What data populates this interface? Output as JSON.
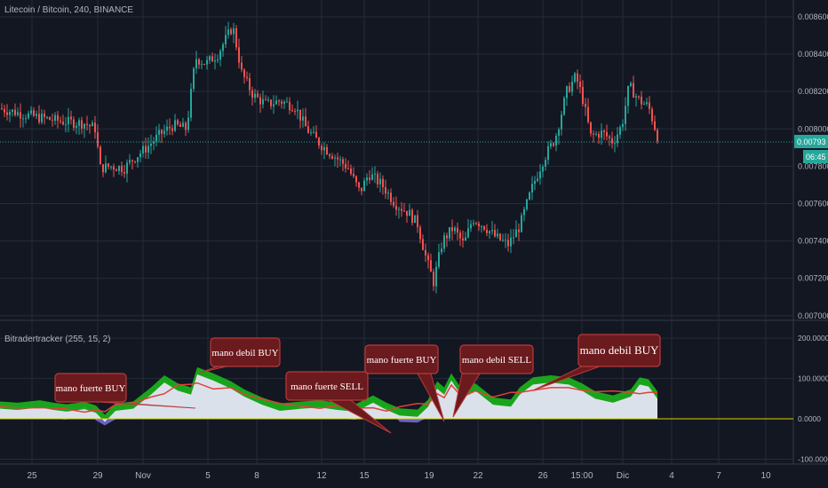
{
  "title": "Litecoin / Bitcoin, 240, BINANCE",
  "indicator_title": "Bitradertracker (255, 15, 2)",
  "price_tag": {
    "value": "0.00793",
    "time": "06:45"
  },
  "colors": {
    "up": "#26a69a",
    "down": "#ef5350",
    "green_fill": "#1bb51b",
    "blue_fill": "#7b6fd6",
    "white_fill": "#e6e4f5",
    "red_line": "#e0403a",
    "zero_line": "#d4d40a",
    "callout_bg": "#6b1a1e",
    "callout_border": "#b83a3a",
    "grid": "#262b3a"
  },
  "callouts": [
    {
      "text": "mano fuerte BUY"
    },
    {
      "text": "mano debil BUY"
    },
    {
      "text": "mano fuerte SELL"
    },
    {
      "text": "mano fuerte BUY"
    },
    {
      "text": "mano debil SELL"
    },
    {
      "text": "mano debil BUY"
    }
  ],
  "chart_data": [
    {
      "type": "candlestick",
      "title": "Litecoin / Bitcoin, 240, BINANCE",
      "x_ticks": [
        "25",
        "29",
        "Nov",
        "5",
        "8",
        "12",
        "15",
        "19",
        "22",
        "26",
        "15:00",
        "Dic",
        "4",
        "7",
        "10"
      ],
      "y_ticks": [
        "0.008600",
        "0.008400",
        "0.008200",
        "0.008000",
        "0.007800",
        "0.007600",
        "0.007400",
        "0.007200",
        "0.007000"
      ],
      "ylim": [
        0.00698,
        0.00869
      ],
      "close_path": [
        [
          0,
          0.00811
        ],
        [
          8,
          0.0081
        ],
        [
          25,
          0.00808
        ],
        [
          45,
          0.00806
        ],
        [
          70,
          0.00804
        ],
        [
          95,
          0.00803
        ],
        [
          108,
          0.008
        ],
        [
          112,
          0.00779
        ],
        [
          125,
          0.0078
        ],
        [
          140,
          0.00779
        ],
        [
          150,
          0.00784
        ],
        [
          165,
          0.0079
        ],
        [
          180,
          0.00797
        ],
        [
          195,
          0.00802
        ],
        [
          210,
          0.008
        ],
        [
          220,
          0.00838
        ],
        [
          232,
          0.00835
        ],
        [
          245,
          0.0084
        ],
        [
          262,
          0.00855
        ],
        [
          272,
          0.0083
        ],
        [
          285,
          0.00818
        ],
        [
          300,
          0.00813
        ],
        [
          315,
          0.00815
        ],
        [
          332,
          0.00812
        ],
        [
          345,
          0.008
        ],
        [
          360,
          0.00792
        ],
        [
          375,
          0.00786
        ],
        [
          392,
          0.00779
        ],
        [
          405,
          0.00766
        ],
        [
          415,
          0.00776
        ],
        [
          430,
          0.0077
        ],
        [
          445,
          0.0076
        ],
        [
          460,
          0.00755
        ],
        [
          470,
          0.00749
        ],
        [
          480,
          0.0073
        ],
        [
          488,
          0.00718
        ],
        [
          498,
          0.0074
        ],
        [
          510,
          0.00747
        ],
        [
          522,
          0.00738
        ],
        [
          532,
          0.00752
        ],
        [
          545,
          0.00748
        ],
        [
          558,
          0.00742
        ],
        [
          572,
          0.00738
        ],
        [
          585,
          0.00748
        ],
        [
          600,
          0.0077
        ],
        [
          612,
          0.00784
        ],
        [
          625,
          0.00795
        ],
        [
          638,
          0.0082
        ],
        [
          648,
          0.00828
        ],
        [
          655,
          0.00818
        ],
        [
          665,
          0.00796
        ],
        [
          678,
          0.00798
        ],
        [
          690,
          0.00793
        ],
        [
          700,
          0.00802
        ],
        [
          708,
          0.00823
        ],
        [
          720,
          0.00815
        ],
        [
          730,
          0.00812
        ],
        [
          742,
          0.00793
        ]
      ],
      "current_price": 0.00793
    },
    {
      "type": "area",
      "title": "Bitradertracker (255, 15, 2)",
      "y_ticks": [
        "200.0000",
        "100.0000",
        "0.0000",
        "-100.0000"
      ],
      "ylim": [
        -110,
        240
      ],
      "series": [
        {
          "name": "Bitradertracker",
          "points": [
            [
              0,
              25
            ],
            [
              20,
              22
            ],
            [
              45,
              28
            ],
            [
              60,
              22
            ],
            [
              75,
              18
            ],
            [
              95,
              24
            ],
            [
              108,
              15
            ],
            [
              118,
              -8
            ],
            [
              130,
              20
            ],
            [
              150,
              25
            ],
            [
              170,
              60
            ],
            [
              185,
              90
            ],
            [
              200,
              70
            ],
            [
              215,
              60
            ],
            [
              222,
              110
            ],
            [
              240,
              95
            ],
            [
              260,
              75
            ],
            [
              275,
              55
            ],
            [
              295,
              35
            ],
            [
              315,
              20
            ],
            [
              340,
              25
            ],
            [
              360,
              28
            ],
            [
              380,
              22
            ],
            [
              400,
              18
            ],
            [
              420,
              40
            ],
            [
              435,
              22
            ],
            [
              450,
              8
            ],
            [
              470,
              5
            ],
            [
              482,
              30
            ],
            [
              492,
              75
            ],
            [
              500,
              60
            ],
            [
              508,
              95
            ],
            [
              520,
              55
            ],
            [
              535,
              70
            ],
            [
              555,
              35
            ],
            [
              575,
              30
            ],
            [
              585,
              60
            ],
            [
              600,
              85
            ],
            [
              620,
              90
            ],
            [
              640,
              85
            ],
            [
              655,
              70
            ],
            [
              670,
              50
            ],
            [
              690,
              40
            ],
            [
              710,
              55
            ],
            [
              720,
              85
            ],
            [
              730,
              80
            ],
            [
              740,
              50
            ]
          ]
        }
      ]
    }
  ]
}
